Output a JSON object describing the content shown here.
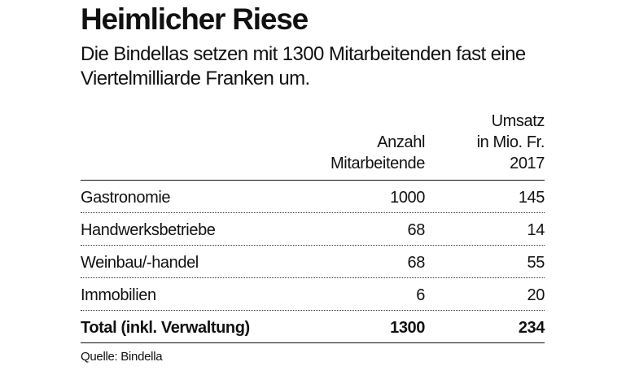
{
  "title": "Heimlicher Riese",
  "subtitle": "Die Bindellas setzen mit 1300 Mitarbeitenden fast eine Viertelmilliarde Franken um.",
  "columns": {
    "employees": [
      "Anzahl",
      "Mitarbeitende"
    ],
    "revenue": [
      "Umsatz",
      "in Mio. Fr.",
      "2017"
    ]
  },
  "rows": [
    {
      "label": "Gastronomie",
      "employees": "1000",
      "revenue": "145"
    },
    {
      "label": "Handwerksbetriebe",
      "employees": "68",
      "revenue": "14"
    },
    {
      "label": "Weinbau/-handel",
      "employees": "68",
      "revenue": "55"
    },
    {
      "label": "Immobilien",
      "employees": "6",
      "revenue": "20"
    }
  ],
  "total": {
    "label": "Total (inkl. Verwaltung)",
    "employees": "1300",
    "revenue": "234"
  },
  "source": "Quelle: Bindella"
}
